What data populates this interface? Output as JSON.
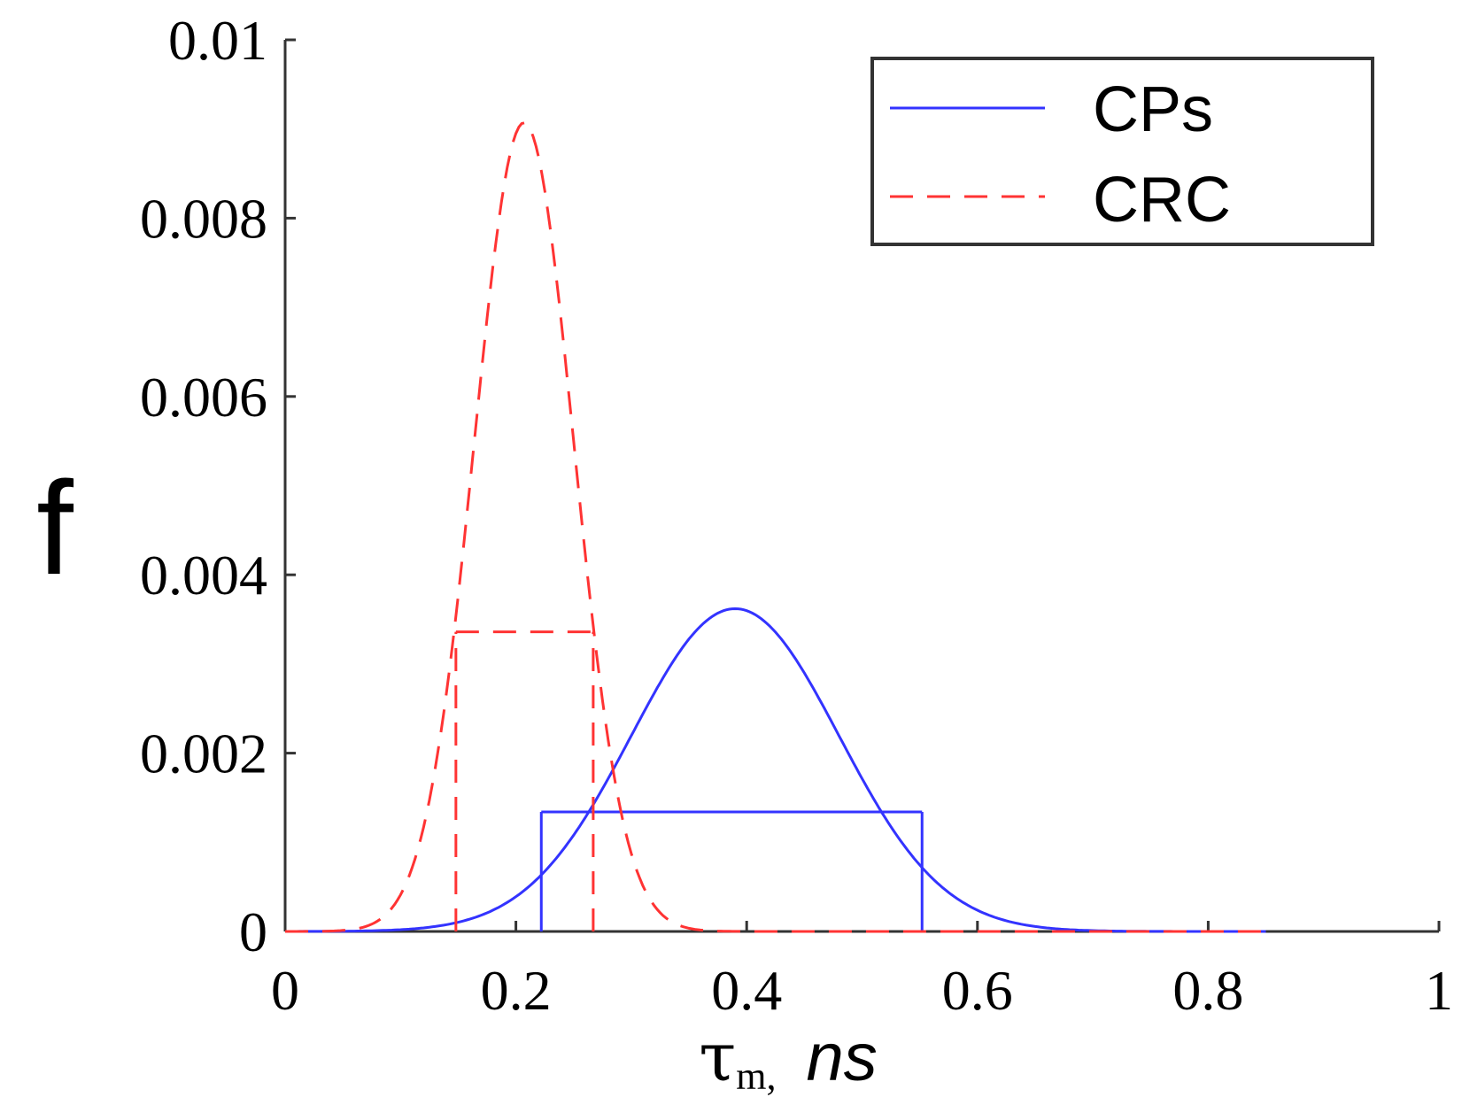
{
  "chart_data": {
    "type": "line",
    "title": "",
    "xlabel": {
      "symbol": "τ",
      "subscript": "m",
      "separator": ",",
      "unit": "ns"
    },
    "ylabel": "f",
    "xlim": [
      0,
      1
    ],
    "ylim": [
      0,
      0.01
    ],
    "xticks": [
      0,
      0.2,
      0.4,
      0.6,
      0.8,
      1
    ],
    "xtick_labels": [
      "0",
      "0.2",
      "0.4",
      "0.6",
      "0.8",
      "1"
    ],
    "yticks": [
      0,
      0.002,
      0.004,
      0.006,
      0.008,
      0.01
    ],
    "ytick_labels": [
      "0",
      "0.002",
      "0.004",
      "0.006",
      "0.008",
      "0.01"
    ],
    "grid": false,
    "legend_position": "top-right",
    "series": [
      {
        "name": "CPs",
        "style": "solid",
        "color": "#3333ff",
        "distribution": {
          "kind": "gaussian",
          "mean": 0.39,
          "sd": 0.09,
          "peak": 0.00362,
          "x_range": [
            0,
            0.85
          ]
        },
        "interval": {
          "x_low": 0.222,
          "x_high": 0.552,
          "f_level": 0.00134
        }
      },
      {
        "name": "CRC",
        "style": "dashed",
        "color": "#ff3333",
        "distribution": {
          "kind": "gaussian",
          "mean": 0.207,
          "sd": 0.043,
          "peak": 0.00907,
          "x_range": [
            0,
            0.85
          ]
        },
        "interval": {
          "x_low": 0.148,
          "x_high": 0.267,
          "f_level": 0.00336
        }
      }
    ]
  }
}
